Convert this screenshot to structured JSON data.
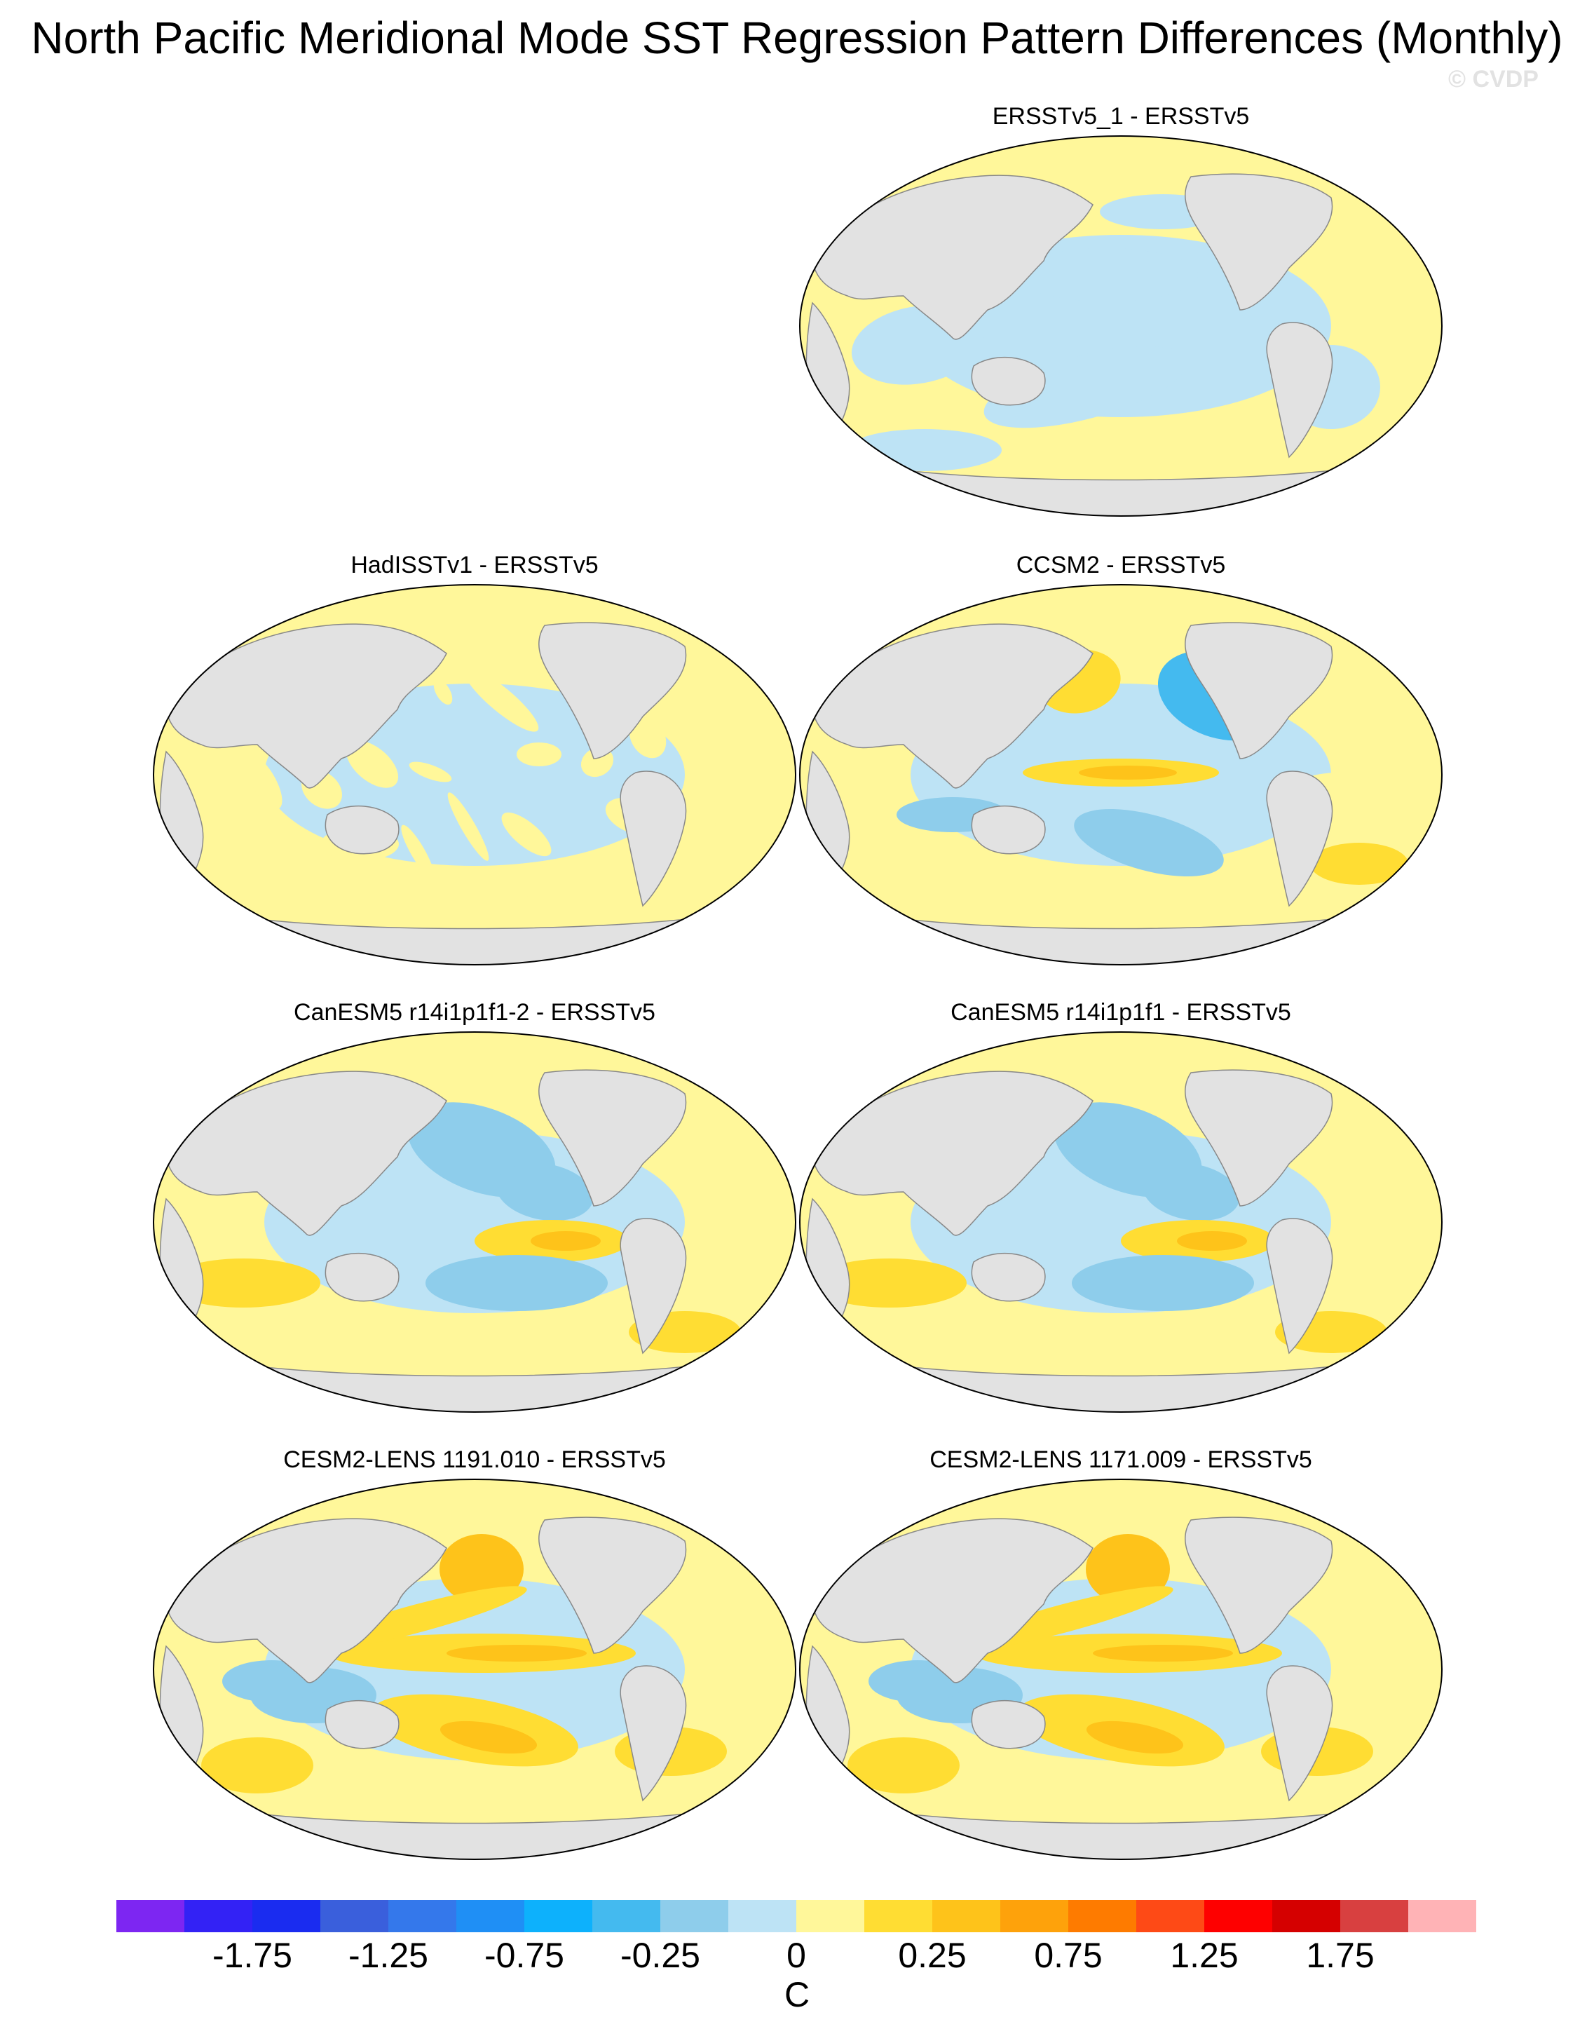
{
  "title": "North Pacific Meridional Mode SST Regression Pattern Differences (Monthly)",
  "watermark": "© CVDP",
  "units": "C",
  "colors": {
    "land": "#e2e2e2",
    "coast": "#888888",
    "ocean_positive": "#fff79a",
    "ocean_negative": "#bde3f5",
    "anomaly_pos_1": "#ffdd33",
    "anomaly_pos_2": "#fec31a",
    "anomaly_neg_1": "#8ecdeb",
    "anomaly_neg_2": "#44baef"
  },
  "panels": [
    {
      "label": "ERSSTv5_1 - ERSSTv5",
      "pattern": "weak"
    },
    {
      "label": "HadISSTv1 - ERSSTv5",
      "pattern": "noisy"
    },
    {
      "label": "CCSM2 - ERSSTv5",
      "pattern": "ccsm"
    },
    {
      "label": "CanESM5 r14i1p1f1-2 - ERSSTv5",
      "pattern": "canesm"
    },
    {
      "label": "CanESM5 r14i1p1f1 - ERSSTv5",
      "pattern": "canesm"
    },
    {
      "label": "CESM2-LENS 1191.010 - ERSSTv5",
      "pattern": "cesm"
    },
    {
      "label": "CESM2-LENS 1171.009 - ERSSTv5",
      "pattern": "cesm"
    }
  ],
  "colorbar": {
    "colors": [
      "#7d26f2",
      "#3322f5",
      "#1a2cf0",
      "#3a5fdc",
      "#3478eb",
      "#1f8ff5",
      "#0db1fc",
      "#44baef",
      "#8ecdeb",
      "#bde3f5",
      "#fff79a",
      "#ffdd33",
      "#fec31a",
      "#fea20b",
      "#fe7b00",
      "#fe4a16",
      "#fe0000",
      "#d50000",
      "#d84040",
      "#ffb3b6"
    ],
    "labels": [
      "-1.75",
      "-1.25",
      "-0.75",
      "-0.25",
      "0",
      "0.25",
      "0.75",
      "1.25",
      "1.75"
    ]
  }
}
